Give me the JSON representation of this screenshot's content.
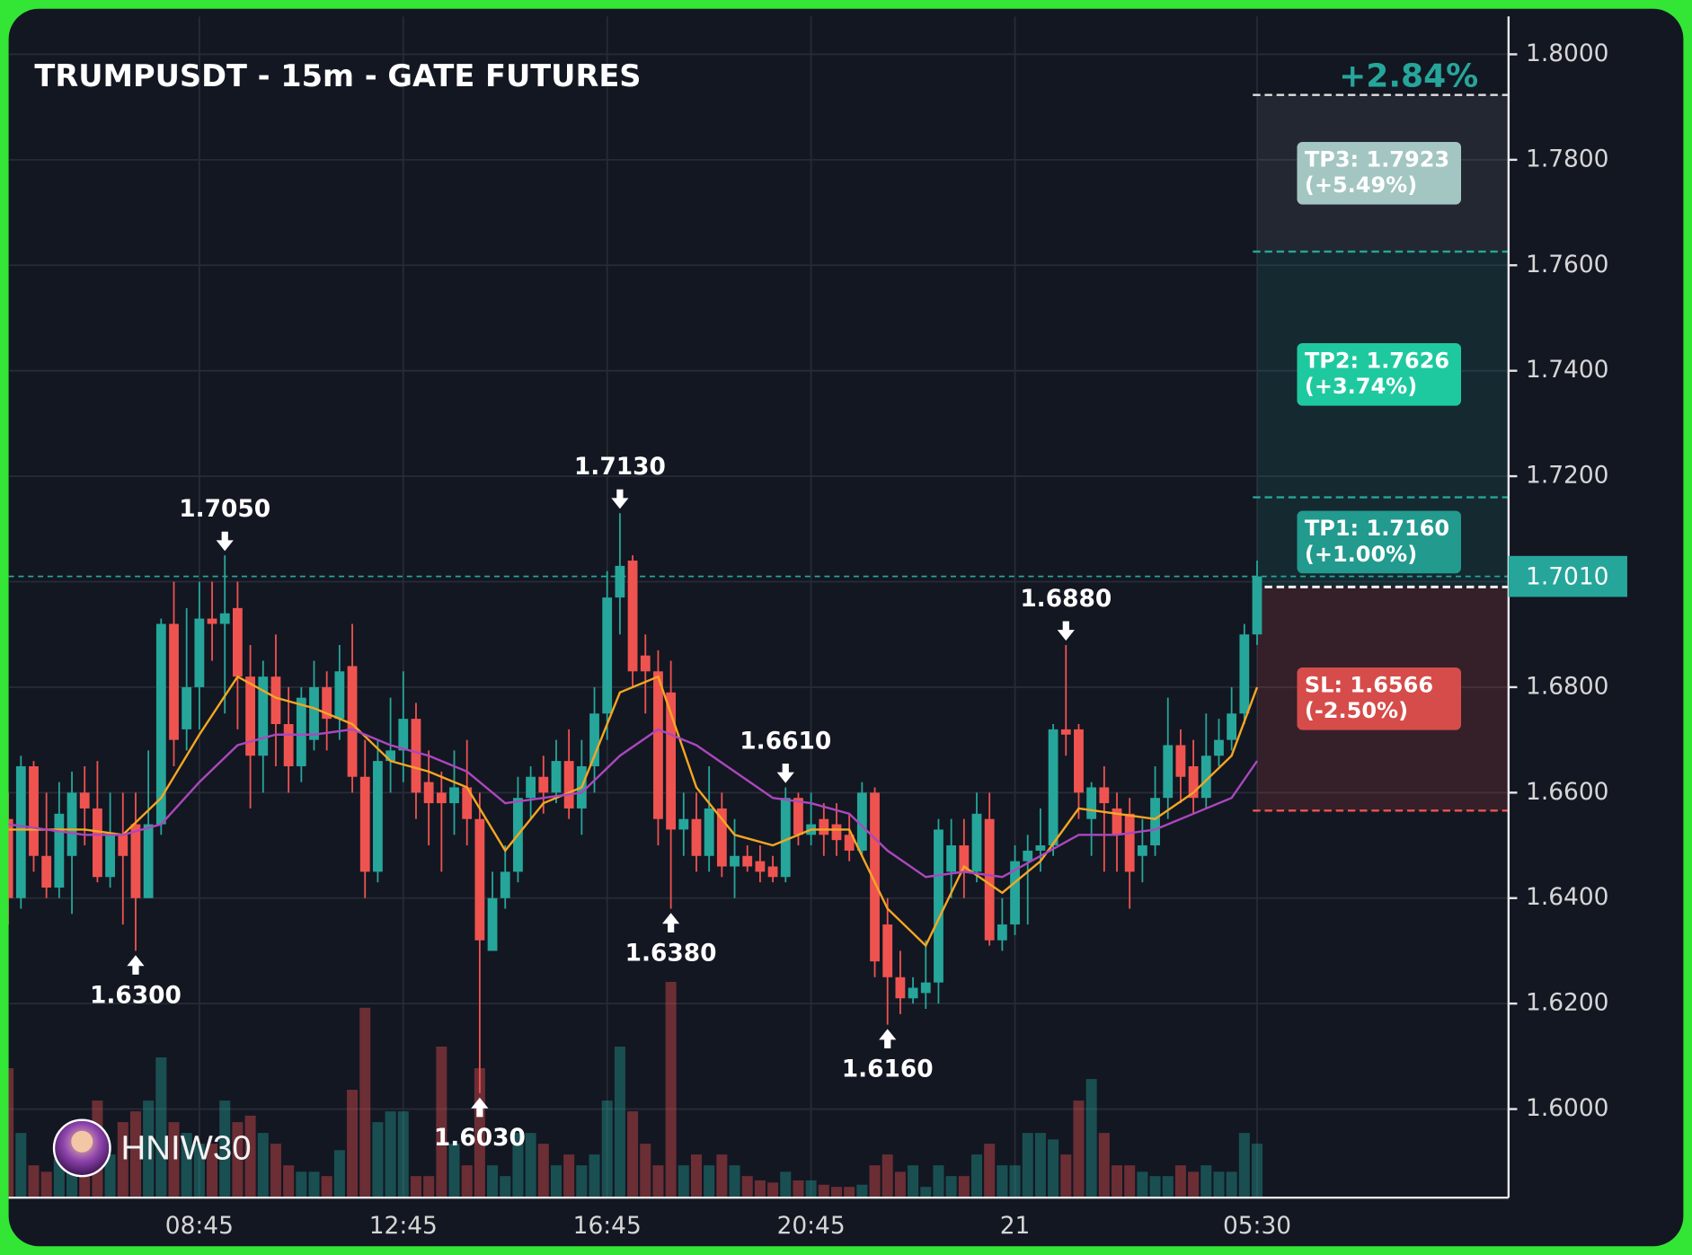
{
  "chart_data": {
    "type": "candlestick",
    "title": "TRUMPUSDT - 15m - GATE FUTURES",
    "change_label": "+2.84%",
    "watermark": "HNIW30",
    "up_color": "#26a69a",
    "down_color": "#ef5350",
    "categories": [
      null,
      null,
      null,
      null,
      null,
      null,
      null,
      null,
      null,
      null,
      null,
      null,
      null,
      null,
      null,
      "08:45",
      null,
      null,
      null,
      null,
      null,
      null,
      null,
      null,
      null,
      null,
      null,
      null,
      null,
      null,
      null,
      "12:45",
      null,
      null,
      null,
      null,
      null,
      null,
      null,
      null,
      null,
      null,
      null,
      null,
      null,
      null,
      null,
      "16:45",
      null,
      null,
      null,
      null,
      null,
      null,
      null,
      null,
      null,
      null,
      null,
      null,
      null,
      null,
      null,
      "20:45",
      null,
      null,
      null,
      null,
      null,
      null,
      null,
      null,
      null,
      null,
      null,
      null,
      null,
      null,
      null,
      "21",
      null,
      null,
      null,
      null,
      null,
      null,
      null,
      null,
      null,
      null,
      null,
      null,
      null,
      null,
      null,
      null,
      null,
      null,
      "05:30"
    ],
    "open": [
      1.655,
      1.64,
      1.665,
      1.648,
      1.642,
      1.648,
      1.66,
      1.657,
      1.644,
      1.652,
      1.654,
      1.64,
      1.654,
      1.692,
      1.672,
      1.68,
      1.693,
      1.692,
      1.695,
      1.682,
      1.667,
      1.682,
      1.673,
      1.665,
      1.67,
      1.68,
      1.674,
      1.684,
      1.663,
      1.645,
      1.666,
      1.668,
      1.674,
      1.662,
      1.66,
      1.658,
      1.661,
      1.655,
      1.63,
      1.64,
      1.645,
      1.659,
      1.663,
      1.66,
      1.666,
      1.657,
      1.665,
      1.675,
      1.697,
      1.704,
      1.686,
      1.683,
      1.679,
      1.653,
      1.655,
      1.648,
      1.657,
      1.646,
      1.648,
      1.647,
      1.646,
      1.644,
      1.659,
      1.652,
      1.655,
      1.654,
      1.652,
      1.649,
      1.66,
      1.635,
      1.625,
      1.621,
      1.622,
      1.624,
      1.645,
      1.65,
      1.645,
      1.655,
      1.632,
      1.635,
      1.647,
      1.649,
      1.65,
      1.672,
      1.672,
      1.655,
      1.661,
      1.657,
      1.656,
      1.648,
      1.65,
      1.659,
      1.669,
      1.665,
      1.659,
      1.667,
      1.67,
      1.675,
      1.69
    ],
    "high": [
      1.66,
      1.667,
      1.666,
      1.66,
      1.662,
      1.664,
      1.665,
      1.666,
      1.66,
      1.66,
      1.66,
      1.668,
      1.693,
      1.7,
      1.695,
      1.7,
      1.7,
      1.705,
      1.7,
      1.688,
      1.685,
      1.69,
      1.68,
      1.68,
      1.685,
      1.683,
      1.688,
      1.692,
      1.67,
      1.67,
      1.678,
      1.683,
      1.677,
      1.668,
      1.664,
      1.668,
      1.67,
      1.66,
      1.645,
      1.65,
      1.663,
      1.665,
      1.667,
      1.67,
      1.672,
      1.67,
      1.68,
      1.702,
      1.713,
      1.705,
      1.69,
      1.687,
      1.685,
      1.66,
      1.66,
      1.665,
      1.66,
      1.655,
      1.65,
      1.65,
      1.648,
      1.661,
      1.66,
      1.66,
      1.658,
      1.658,
      1.656,
      1.662,
      1.661,
      1.64,
      1.63,
      1.625,
      1.632,
      1.655,
      1.655,
      1.655,
      1.66,
      1.66,
      1.64,
      1.65,
      1.652,
      1.657,
      1.673,
      1.688,
      1.673,
      1.662,
      1.665,
      1.66,
      1.659,
      1.655,
      1.665,
      1.678,
      1.672,
      1.67,
      1.675,
      1.674,
      1.68,
      1.692,
      1.704
    ],
    "low": [
      1.635,
      1.638,
      1.645,
      1.64,
      1.64,
      1.637,
      1.65,
      1.643,
      1.642,
      1.635,
      1.63,
      1.64,
      1.652,
      1.665,
      1.668,
      1.672,
      1.685,
      1.675,
      1.672,
      1.657,
      1.66,
      1.665,
      1.66,
      1.662,
      1.668,
      1.668,
      1.67,
      1.66,
      1.64,
      1.643,
      1.66,
      1.662,
      1.655,
      1.65,
      1.645,
      1.652,
      1.65,
      1.603,
      1.63,
      1.638,
      1.643,
      1.655,
      1.656,
      1.658,
      1.655,
      1.652,
      1.66,
      1.67,
      1.69,
      1.68,
      1.675,
      1.65,
      1.638,
      1.648,
      1.645,
      1.645,
      1.644,
      1.64,
      1.645,
      1.643,
      1.643,
      1.643,
      1.65,
      1.65,
      1.648,
      1.648,
      1.647,
      1.648,
      1.625,
      1.616,
      1.618,
      1.62,
      1.619,
      1.62,
      1.64,
      1.64,
      1.643,
      1.631,
      1.63,
      1.633,
      1.635,
      1.645,
      1.648,
      1.667,
      1.655,
      1.648,
      1.645,
      1.645,
      1.638,
      1.643,
      1.648,
      1.655,
      1.658,
      1.656,
      1.657,
      1.665,
      1.668,
      1.673,
      1.688
    ],
    "close": [
      1.64,
      1.665,
      1.648,
      1.642,
      1.656,
      1.66,
      1.657,
      1.644,
      1.652,
      1.648,
      1.64,
      1.654,
      1.692,
      1.67,
      1.68,
      1.693,
      1.692,
      1.694,
      1.682,
      1.667,
      1.682,
      1.673,
      1.665,
      1.678,
      1.68,
      1.674,
      1.683,
      1.663,
      1.645,
      1.666,
      1.668,
      1.674,
      1.66,
      1.658,
      1.658,
      1.661,
      1.655,
      1.632,
      1.64,
      1.645,
      1.659,
      1.663,
      1.66,
      1.666,
      1.657,
      1.665,
      1.675,
      1.697,
      1.703,
      1.683,
      1.683,
      1.655,
      1.653,
      1.655,
      1.648,
      1.657,
      1.646,
      1.648,
      1.646,
      1.645,
      1.644,
      1.659,
      1.652,
      1.654,
      1.652,
      1.651,
      1.649,
      1.66,
      1.628,
      1.625,
      1.621,
      1.623,
      1.624,
      1.653,
      1.65,
      1.645,
      1.656,
      1.632,
      1.635,
      1.647,
      1.649,
      1.65,
      1.672,
      1.671,
      1.66,
      1.661,
      1.658,
      1.652,
      1.645,
      1.65,
      1.659,
      1.669,
      1.663,
      1.659,
      1.667,
      1.67,
      1.675,
      1.69,
      1.701
    ],
    "volume": [
      60,
      30,
      15,
      12,
      18,
      12,
      35,
      45,
      20,
      35,
      40,
      45,
      65,
      35,
      30,
      25,
      25,
      45,
      35,
      38,
      30,
      25,
      15,
      12,
      12,
      10,
      22,
      50,
      88,
      35,
      40,
      40,
      10,
      10,
      70,
      25,
      15,
      60,
      15,
      10,
      30,
      30,
      25,
      15,
      20,
      15,
      20,
      45,
      70,
      40,
      25,
      15,
      100,
      15,
      20,
      15,
      20,
      15,
      10,
      8,
      7,
      12,
      8,
      8,
      6,
      5,
      5,
      6,
      15,
      20,
      12,
      15,
      5,
      15,
      10,
      10,
      20,
      25,
      15,
      15,
      30,
      30,
      27,
      20,
      45,
      55,
      30,
      15,
      15,
      12,
      10,
      10,
      15,
      12,
      15,
      12,
      12,
      30,
      25
    ],
    "volume_lim": [
      0,
      100
    ],
    "lines": [
      {
        "color": "#f5a623",
        "x": [
          0,
          3,
          6,
          9,
          12,
          15,
          18,
          21,
          24,
          27,
          30,
          33,
          36,
          39,
          42,
          45,
          48,
          51,
          54,
          57,
          60,
          63,
          66,
          69,
          72,
          75,
          78,
          81,
          84,
          87,
          90,
          93,
          96,
          98
        ],
        "values": [
          1.653,
          1.653,
          1.653,
          1.652,
          1.659,
          1.671,
          1.682,
          1.678,
          1.676,
          1.673,
          1.666,
          1.664,
          1.661,
          1.649,
          1.658,
          1.661,
          1.679,
          1.682,
          1.661,
          1.652,
          1.65,
          1.653,
          1.653,
          1.638,
          1.631,
          1.646,
          1.641,
          1.647,
          1.657,
          1.656,
          1.655,
          1.66,
          1.667,
          1.68
        ]
      },
      {
        "color": "#ab47bc",
        "x": [
          0,
          3,
          6,
          9,
          12,
          15,
          18,
          21,
          24,
          27,
          30,
          33,
          36,
          39,
          42,
          45,
          48,
          51,
          54,
          57,
          60,
          63,
          66,
          69,
          72,
          75,
          78,
          81,
          84,
          87,
          90,
          93,
          96,
          98
        ],
        "values": [
          1.654,
          1.653,
          1.652,
          1.652,
          1.654,
          1.662,
          1.669,
          1.671,
          1.671,
          1.672,
          1.669,
          1.667,
          1.664,
          1.658,
          1.659,
          1.66,
          1.667,
          1.672,
          1.669,
          1.664,
          1.659,
          1.658,
          1.656,
          1.649,
          1.644,
          1.645,
          1.644,
          1.648,
          1.652,
          1.652,
          1.653,
          1.656,
          1.659,
          1.666
        ]
      }
    ],
    "annotations": [
      {
        "index": 17,
        "value": 1.705,
        "label": "1.7050",
        "position": "above"
      },
      {
        "index": 10,
        "value": 1.63,
        "label": "1.6300",
        "position": "below"
      },
      {
        "index": 48,
        "value": 1.713,
        "label": "1.7130",
        "position": "above"
      },
      {
        "index": 52,
        "value": 1.638,
        "label": "1.6380",
        "position": "below"
      },
      {
        "index": 37,
        "value": 1.603,
        "label": "1.6030",
        "position": "below"
      },
      {
        "index": 61,
        "value": 1.661,
        "label": "1.6610",
        "position": "above"
      },
      {
        "index": 69,
        "value": 1.616,
        "label": "1.6160",
        "position": "below"
      },
      {
        "index": 83,
        "value": 1.688,
        "label": "1.6880",
        "position": "above"
      }
    ],
    "entry": 1.699,
    "levels": [
      {
        "label": "TP3: 1.7923",
        "sub": "(+5.49%)",
        "value": 1.7923,
        "color": "#a3c6c2",
        "line_color": "#e0e0e0",
        "zone": "rgba(255,255,255,0.07)"
      },
      {
        "label": "TP2: 1.7626",
        "sub": "(+3.74%)",
        "value": 1.7626,
        "color": "#1fc99f",
        "line_color": "#26a69a",
        "zone": "rgba(38,166,154,0.13)"
      },
      {
        "label": "TP1: 1.7160",
        "sub": "(+1.00%)",
        "value": 1.716,
        "color": "#229a8e",
        "line_color": "#26a69a",
        "zone": "rgba(38,166,154,0.13)"
      },
      {
        "label": "SL: 1.6566",
        "sub": "(-2.50%)",
        "value": 1.6566,
        "color": "#d64c4a",
        "line_color": "#ef5350",
        "zone": "rgba(239,83,80,0.16)"
      }
    ],
    "last_price": {
      "value": 1.701,
      "label": "1.7010"
    },
    "ylim": [
      1.5832,
      1.8072
    ],
    "yticks": [
      {
        "value": 1.6,
        "label": "1.6000"
      },
      {
        "value": 1.62,
        "label": "1.6200"
      },
      {
        "value": 1.64,
        "label": "1.6400"
      },
      {
        "value": 1.66,
        "label": "1.6600"
      },
      {
        "value": 1.68,
        "label": "1.6800"
      },
      {
        "value": 1.7,
        "label": "1.7000"
      },
      {
        "value": 1.72,
        "label": "1.7200"
      },
      {
        "value": 1.74,
        "label": "1.7400"
      },
      {
        "value": 1.76,
        "label": "1.7600"
      },
      {
        "value": 1.78,
        "label": "1.7800"
      },
      {
        "value": 1.8,
        "label": "1.8000"
      }
    ],
    "grid": true
  }
}
